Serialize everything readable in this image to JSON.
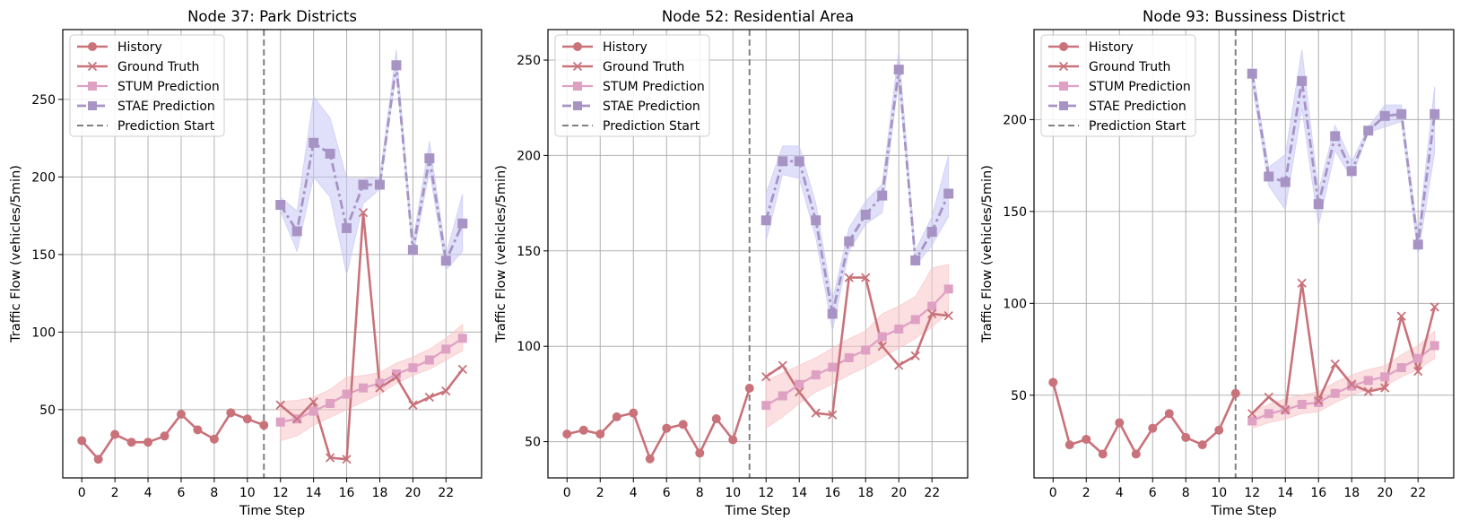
{
  "legend_labels": {
    "history": "History",
    "ground_truth": "Ground Truth",
    "stum": "STUM Prediction",
    "stae": "STAE Prediction",
    "pred_start": "Prediction Start"
  },
  "colors": {
    "history": "#c9727a",
    "stum": "#dea0c3",
    "stum_band": "#f8c4c8",
    "stae": "#a793c4",
    "stae_band": "#c7c7f5",
    "pred_start": "#808080",
    "grid": "#b0b0b0"
  },
  "chart_data": [
    {
      "type": "line",
      "title": "Node 37: Park Districts",
      "xlabel": "Time Step",
      "ylabel": "Traffic Flow (vehicles/5min)",
      "xlim": [
        -1.15,
        24.15
      ],
      "ylim": [
        6,
        295
      ],
      "xticks": [
        0,
        2,
        4,
        6,
        8,
        10,
        12,
        14,
        16,
        18,
        20,
        22
      ],
      "yticks": [
        50,
        100,
        150,
        200,
        250
      ],
      "prediction_start": 11,
      "legend_position": "upper-left",
      "history": {
        "x": [
          0,
          1,
          2,
          3,
          4,
          5,
          6,
          7,
          8,
          9,
          10,
          11
        ],
        "y": [
          30,
          18,
          34,
          29,
          29,
          33,
          47,
          37,
          31,
          48,
          44,
          40
        ]
      },
      "ground_truth": {
        "x": [
          12,
          13,
          14,
          15,
          16,
          17,
          18,
          19,
          20,
          21,
          22,
          23
        ],
        "y": [
          53,
          44,
          55,
          19,
          18,
          177,
          64,
          71,
          53,
          58,
          62,
          76
        ]
      },
      "stum": {
        "x": [
          12,
          13,
          14,
          15,
          16,
          17,
          18,
          19,
          20,
          21,
          22,
          23
        ],
        "y": [
          42,
          44,
          49,
          54,
          60,
          64,
          67,
          73,
          77,
          82,
          89,
          96
        ],
        "lower": [
          30,
          33,
          40,
          45,
          50,
          55,
          60,
          67,
          72,
          76,
          82,
          88
        ],
        "upper": [
          55,
          56,
          58,
          63,
          71,
          72,
          74,
          80,
          84,
          89,
          96,
          105
        ]
      },
      "stae": {
        "x": [
          12,
          13,
          14,
          15,
          16,
          17,
          18,
          19,
          20,
          21,
          22,
          23
        ],
        "y": [
          182,
          165,
          222,
          215,
          167,
          195,
          195,
          272,
          153,
          212,
          146,
          170
        ],
        "lower": [
          178,
          152,
          200,
          187,
          137,
          183,
          192,
          268,
          148,
          204,
          140,
          152
        ],
        "upper": [
          187,
          178,
          252,
          238,
          199,
          199,
          200,
          282,
          158,
          223,
          150,
          189
        ]
      }
    },
    {
      "type": "line",
      "title": "Node 52: Residential Area",
      "xlabel": "Time Step",
      "ylabel": "Traffic Flow (vehicles/5min)",
      "xlim": [
        -1.15,
        24.15
      ],
      "ylim": [
        31,
        266
      ],
      "xticks": [
        0,
        2,
        4,
        6,
        8,
        10,
        12,
        14,
        16,
        18,
        20,
        22
      ],
      "yticks": [
        50,
        100,
        150,
        200,
        250
      ],
      "prediction_start": 11,
      "legend_position": "upper-left",
      "history": {
        "x": [
          0,
          1,
          2,
          3,
          4,
          5,
          6,
          7,
          8,
          9,
          10,
          11
        ],
        "y": [
          54,
          56,
          54,
          63,
          65,
          41,
          57,
          59,
          44,
          62,
          51,
          78
        ]
      },
      "ground_truth": {
        "x": [
          12,
          13,
          14,
          15,
          16,
          17,
          18,
          19,
          20,
          21,
          22,
          23
        ],
        "y": [
          84,
          90,
          76,
          65,
          64,
          136,
          136,
          100,
          90,
          95,
          117,
          116
        ]
      },
      "stum": {
        "x": [
          12,
          13,
          14,
          15,
          16,
          17,
          18,
          19,
          20,
          21,
          22,
          23
        ],
        "y": [
          69,
          74,
          80,
          85,
          89,
          94,
          98,
          105,
          109,
          114,
          121,
          130
        ],
        "lower": [
          57,
          63,
          70,
          76,
          80,
          85,
          89,
          94,
          99,
          104,
          110,
          118
        ],
        "upper": [
          82,
          86,
          90,
          94,
          99,
          104,
          108,
          117,
          121,
          126,
          141,
          143
        ]
      },
      "stae": {
        "x": [
          12,
          13,
          14,
          15,
          16,
          17,
          18,
          19,
          20,
          21,
          22,
          23
        ],
        "y": [
          166,
          197,
          197,
          166,
          117,
          155,
          169,
          179,
          245,
          145,
          160,
          180
        ],
        "lower": [
          155,
          190,
          188,
          157,
          108,
          150,
          164,
          170,
          241,
          142,
          153,
          168
        ],
        "upper": [
          180,
          205,
          205,
          175,
          124,
          162,
          176,
          185,
          255,
          150,
          168,
          200
        ]
      }
    },
    {
      "type": "line",
      "title": "Node 93: Bussiness District",
      "xlabel": "Time Step",
      "ylabel": "Traffic Flow (vehicles/5min)",
      "xlim": [
        -1.15,
        24.15
      ],
      "ylim": [
        5,
        249
      ],
      "xticks": [
        0,
        2,
        4,
        6,
        8,
        10,
        12,
        14,
        16,
        18,
        20,
        22
      ],
      "yticks": [
        50,
        100,
        150,
        200
      ],
      "prediction_start": 11,
      "legend_position": "upper-left",
      "history": {
        "x": [
          0,
          1,
          2,
          3,
          4,
          5,
          6,
          7,
          8,
          9,
          10,
          11
        ],
        "y": [
          57,
          23,
          26,
          18,
          35,
          18,
          32,
          40,
          27,
          23,
          31,
          51
        ]
      },
      "ground_truth": {
        "x": [
          12,
          13,
          14,
          15,
          16,
          17,
          18,
          19,
          20,
          21,
          22,
          23
        ],
        "y": [
          40,
          49,
          42,
          111,
          47,
          67,
          56,
          52,
          54,
          93,
          63,
          98
        ]
      },
      "stum": {
        "x": [
          12,
          13,
          14,
          15,
          16,
          17,
          18,
          19,
          20,
          21,
          22,
          23
        ],
        "y": [
          36,
          40,
          42,
          45,
          46,
          51,
          55,
          58,
          60,
          65,
          70,
          77
        ],
        "lower": [
          32,
          35,
          37,
          40,
          41,
          46,
          50,
          53,
          55,
          60,
          64,
          70
        ],
        "upper": [
          41,
          45,
          48,
          50,
          52,
          57,
          61,
          64,
          66,
          72,
          77,
          85
        ]
      },
      "stae": {
        "x": [
          12,
          13,
          14,
          15,
          16,
          17,
          18,
          19,
          20,
          21,
          22,
          23
        ],
        "y": [
          225,
          169,
          166,
          221,
          154,
          191,
          172,
          194,
          202,
          203,
          132,
          203
        ],
        "lower": [
          220,
          164,
          151,
          206,
          142,
          183,
          168,
          193,
          196,
          199,
          126,
          182
        ],
        "upper": [
          229,
          174,
          181,
          238,
          161,
          197,
          177,
          196,
          208,
          208,
          137,
          218
        ]
      }
    }
  ]
}
